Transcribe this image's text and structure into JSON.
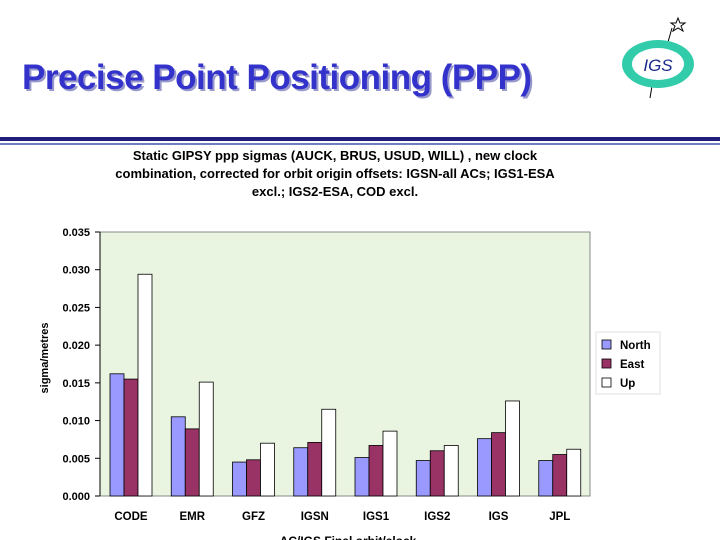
{
  "slide": {
    "title": "Precise Point Positioning (PPP)",
    "logo_text": "IGS"
  },
  "chart_data": {
    "type": "bar",
    "title_lines": [
      "Static GIPSY ppp sigmas (AUCK, BRUS, USUD, WILL) , new clock",
      "combination, corrected for orbit origin offsets: IGSN-all ACs; IGS1-ESA",
      "excl.; IGS2-ESA, COD excl."
    ],
    "categories": [
      "CODE",
      "EMR",
      "GFZ",
      "IGSN",
      "IGS1",
      "IGS2",
      "IGS",
      "JPL"
    ],
    "series": [
      {
        "name": "North",
        "color": "#9999ff",
        "values": [
          0.0162,
          0.0105,
          0.0045,
          0.0064,
          0.0051,
          0.0047,
          0.0076,
          0.0047
        ]
      },
      {
        "name": "East",
        "color": "#993366",
        "values": [
          0.0155,
          0.0089,
          0.0048,
          0.0071,
          0.0067,
          0.006,
          0.0084,
          0.0055
        ]
      },
      {
        "name": "Up",
        "color": "#ffffff",
        "values": [
          0.0294,
          0.0151,
          0.007,
          0.0115,
          0.0086,
          0.0067,
          0.0126,
          0.0062
        ]
      }
    ],
    "ylim": [
      0,
      0.035
    ],
    "yticks": [
      "0.035",
      "0.030",
      "0.025",
      "0.020",
      "0.015",
      "0.010",
      "0.005",
      "0.000"
    ],
    "ylabel": "sigma/metres",
    "xlabel": "AC/IGS Final  orbit/clock",
    "plot_bg": "#eaf5e1",
    "legend_position": "right"
  }
}
